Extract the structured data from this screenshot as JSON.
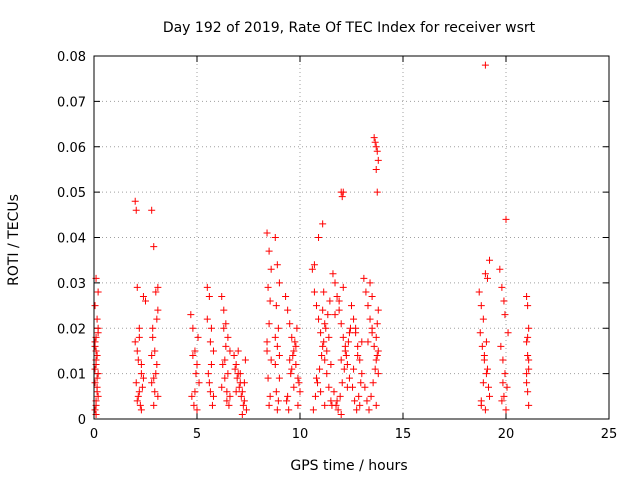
{
  "chart_data": {
    "type": "scatter",
    "title": "Day 192 of 2019, Rate Of TEC Index for receiver wsrt",
    "xlabel": "GPS time / hours",
    "ylabel": "ROTI / TECUs",
    "xlim": [
      0,
      25
    ],
    "ylim": [
      0,
      0.08
    ],
    "xticks": [
      0,
      5,
      10,
      15,
      20,
      25
    ],
    "xtick_labels": [
      "0",
      "5",
      "10",
      "15",
      "20",
      "25"
    ],
    "yticks": [
      0,
      0.01,
      0.02,
      0.03,
      0.04,
      0.05,
      0.06,
      0.07,
      0.08
    ],
    "ytick_labels": [
      "0",
      "0.01",
      "0.02",
      "0.03",
      "0.04",
      "0.05",
      "0.06",
      "0.07",
      "0.08"
    ],
    "grid": true,
    "marker": "+",
    "color": "#ff0000",
    "series": [
      {
        "name": "ROTI",
        "x": [
          0.05,
          0.1,
          0.15,
          0.05,
          0.2,
          0.1,
          0.15,
          0.05,
          0.1,
          0.2,
          0.15,
          0.05,
          0.1,
          0.2,
          0.15,
          0.1,
          0.05,
          0.2,
          0.1,
          0.15,
          0.05,
          0.1,
          0.2,
          0.1,
          2.0,
          2.05,
          2.1,
          2.2,
          2.3,
          2.05,
          2.15,
          2.25,
          2.35,
          2.1,
          2.2,
          2.4,
          2.5,
          2.3,
          2.1,
          2.0,
          2.2,
          2.4,
          2.15,
          2.3,
          2.8,
          2.9,
          3.0,
          3.1,
          2.85,
          2.95,
          3.05,
          2.8,
          3.1,
          2.9,
          3.0,
          2.85,
          3.05,
          2.95,
          2.8,
          2.9,
          3.1,
          4.7,
          4.8,
          4.9,
          5.0,
          5.1,
          4.75,
          4.85,
          4.95,
          5.05,
          4.8,
          4.9,
          5.0,
          5.5,
          5.6,
          5.7,
          5.8,
          5.55,
          5.65,
          5.75,
          5.6,
          5.7,
          5.5,
          5.8,
          5.65,
          6.2,
          6.3,
          6.4,
          6.5,
          6.6,
          6.25,
          6.35,
          6.45,
          6.55,
          6.3,
          6.4,
          6.5,
          6.2,
          6.6,
          6.35,
          6.45,
          6.8,
          6.9,
          7.0,
          7.1,
          7.2,
          7.3,
          7.4,
          6.85,
          6.95,
          7.05,
          7.15,
          7.25,
          7.35,
          7.0,
          7.2,
          6.9,
          7.1,
          7.3,
          8.4,
          8.5,
          8.6,
          8.45,
          8.55,
          8.5,
          8.4,
          8.6,
          8.45,
          8.55,
          8.5,
          8.4,
          8.8,
          8.9,
          9.0,
          8.85,
          8.95,
          8.9,
          8.8,
          9.0,
          8.85,
          8.95,
          8.9,
          8.8,
          9.0,
          9.3,
          9.4,
          9.5,
          9.6,
          9.7,
          9.8,
          9.9,
          10.0,
          9.35,
          9.45,
          9.55,
          9.65,
          9.75,
          9.85,
          9.95,
          9.4,
          9.6,
          9.8,
          9.5,
          9.7,
          9.9,
          10.6,
          10.7,
          10.8,
          10.9,
          11.0,
          11.1,
          11.2,
          11.3,
          11.4,
          11.5,
          10.65,
          10.75,
          10.85,
          10.95,
          11.05,
          11.15,
          11.25,
          11.35,
          11.45,
          11.55,
          10.7,
          10.9,
          11.1,
          11.3,
          11.5,
          10.8,
          11.0,
          11.2,
          11.4,
          11.2,
          11.1,
          11.15,
          11.6,
          11.7,
          11.8,
          11.9,
          12.0,
          12.1,
          12.2,
          12.3,
          12.4,
          11.65,
          11.75,
          11.85,
          11.95,
          12.05,
          12.15,
          12.25,
          12.35,
          12.45,
          11.7,
          11.9,
          12.1,
          12.3,
          11.8,
          12.0,
          12.2,
          12.4,
          12.0,
          12.05,
          12.1,
          12.0,
          12.5,
          12.6,
          12.7,
          12.8,
          12.9,
          13.0,
          12.55,
          12.65,
          12.75,
          12.85,
          12.95,
          12.6,
          12.8,
          13.0,
          12.7,
          12.9,
          13.1,
          13.2,
          13.3,
          13.4,
          13.5,
          13.6,
          13.7,
          13.8,
          13.15,
          13.25,
          13.35,
          13.45,
          13.55,
          13.65,
          13.75,
          13.3,
          13.5,
          13.7,
          13.4,
          13.5,
          13.6,
          13.65,
          13.7,
          13.75,
          13.8,
          13.7,
          13.75,
          13.8,
          13.75,
          13.7,
          13.8,
          18.7,
          18.8,
          18.9,
          19.0,
          19.1,
          19.2,
          18.75,
          18.85,
          18.95,
          19.05,
          19.15,
          18.8,
          19.0,
          19.2,
          18.9,
          19.1,
          19.0,
          18.95,
          19.05,
          18.8,
          19.7,
          19.8,
          19.9,
          20.0,
          20.1,
          19.75,
          19.85,
          19.95,
          20.05,
          19.8,
          20.0,
          19.9,
          19.85,
          19.95,
          21.0,
          21.05,
          21.1,
          21.0,
          21.05,
          21.1,
          21.0,
          21.05,
          21.1,
          21.05,
          21.0,
          21.1
        ],
        "y": [
          0.002,
          0.004,
          0.006,
          0.008,
          0.01,
          0.012,
          0.014,
          0.016,
          0.018,
          0.02,
          0.022,
          0.025,
          0.003,
          0.005,
          0.009,
          0.013,
          0.017,
          0.028,
          0.031,
          0.007,
          0.011,
          0.015,
          0.019,
          0.001,
          0.048,
          0.046,
          0.029,
          0.018,
          0.012,
          0.008,
          0.005,
          0.003,
          0.007,
          0.015,
          0.02,
          0.027,
          0.026,
          0.01,
          0.004,
          0.017,
          0.006,
          0.009,
          0.013,
          0.002,
          0.046,
          0.038,
          0.028,
          0.024,
          0.02,
          0.015,
          0.012,
          0.008,
          0.005,
          0.003,
          0.01,
          0.018,
          0.022,
          0.006,
          0.014,
          0.009,
          0.029,
          0.023,
          0.02,
          0.015,
          0.012,
          0.008,
          0.005,
          0.003,
          0.01,
          0.018,
          0.014,
          0.006,
          0.002,
          0.029,
          0.027,
          0.02,
          0.015,
          0.01,
          0.006,
          0.003,
          0.008,
          0.012,
          0.022,
          0.005,
          0.017,
          0.027,
          0.024,
          0.021,
          0.018,
          0.015,
          0.012,
          0.009,
          0.006,
          0.003,
          0.02,
          0.016,
          0.01,
          0.007,
          0.005,
          0.013,
          0.004,
          0.014,
          0.012,
          0.01,
          0.008,
          0.006,
          0.004,
          0.002,
          0.011,
          0.009,
          0.007,
          0.005,
          0.003,
          0.013,
          0.015,
          0.001,
          0.006,
          0.01,
          0.008,
          0.041,
          0.037,
          0.033,
          0.029,
          0.026,
          0.021,
          0.017,
          0.013,
          0.009,
          0.005,
          0.003,
          0.015,
          0.04,
          0.034,
          0.03,
          0.025,
          0.02,
          0.016,
          0.012,
          0.009,
          0.006,
          0.004,
          0.002,
          0.018,
          0.014,
          0.027,
          0.024,
          0.021,
          0.018,
          0.015,
          0.012,
          0.009,
          0.006,
          0.004,
          0.002,
          0.01,
          0.014,
          0.017,
          0.02,
          0.008,
          0.005,
          0.011,
          0.016,
          0.013,
          0.007,
          0.003,
          0.033,
          0.028,
          0.025,
          0.022,
          0.019,
          0.016,
          0.013,
          0.01,
          0.007,
          0.004,
          0.002,
          0.005,
          0.008,
          0.011,
          0.014,
          0.017,
          0.02,
          0.023,
          0.026,
          0.003,
          0.034,
          0.04,
          0.043,
          0.015,
          0.012,
          0.009,
          0.006,
          0.003,
          0.018,
          0.021,
          0.024,
          0.028,
          0.032,
          0.03,
          0.027,
          0.024,
          0.021,
          0.018,
          0.015,
          0.012,
          0.009,
          0.006,
          0.003,
          0.002,
          0.005,
          0.008,
          0.011,
          0.014,
          0.017,
          0.02,
          0.023,
          0.026,
          0.029,
          0.007,
          0.004,
          0.013,
          0.016,
          0.019,
          0.05,
          0.049,
          0.05,
          0.001,
          0.025,
          0.022,
          0.019,
          0.016,
          0.013,
          0.01,
          0.007,
          0.004,
          0.002,
          0.005,
          0.008,
          0.011,
          0.014,
          0.017,
          0.02,
          0.003,
          0.031,
          0.028,
          0.025,
          0.022,
          0.019,
          0.016,
          0.013,
          0.01,
          0.007,
          0.004,
          0.002,
          0.005,
          0.008,
          0.011,
          0.014,
          0.017,
          0.02,
          0.003,
          0.03,
          0.027,
          0.062,
          0.061,
          0.06,
          0.059,
          0.057,
          0.055,
          0.05,
          0.024,
          0.021,
          0.018,
          0.015,
          0.028,
          0.025,
          0.022,
          0.032,
          0.031,
          0.035,
          0.019,
          0.016,
          0.013,
          0.01,
          0.007,
          0.004,
          0.002,
          0.005,
          0.008,
          0.011,
          0.078,
          0.014,
          0.017,
          0.003,
          0.033,
          0.029,
          0.026,
          0.044,
          0.019,
          0.016,
          0.013,
          0.01,
          0.007,
          0.004,
          0.002,
          0.005,
          0.008,
          0.023,
          0.027,
          0.025,
          0.02,
          0.017,
          0.014,
          0.011,
          0.008,
          0.006,
          0.003,
          0.018,
          0.01,
          0.013
        ]
      }
    ]
  }
}
